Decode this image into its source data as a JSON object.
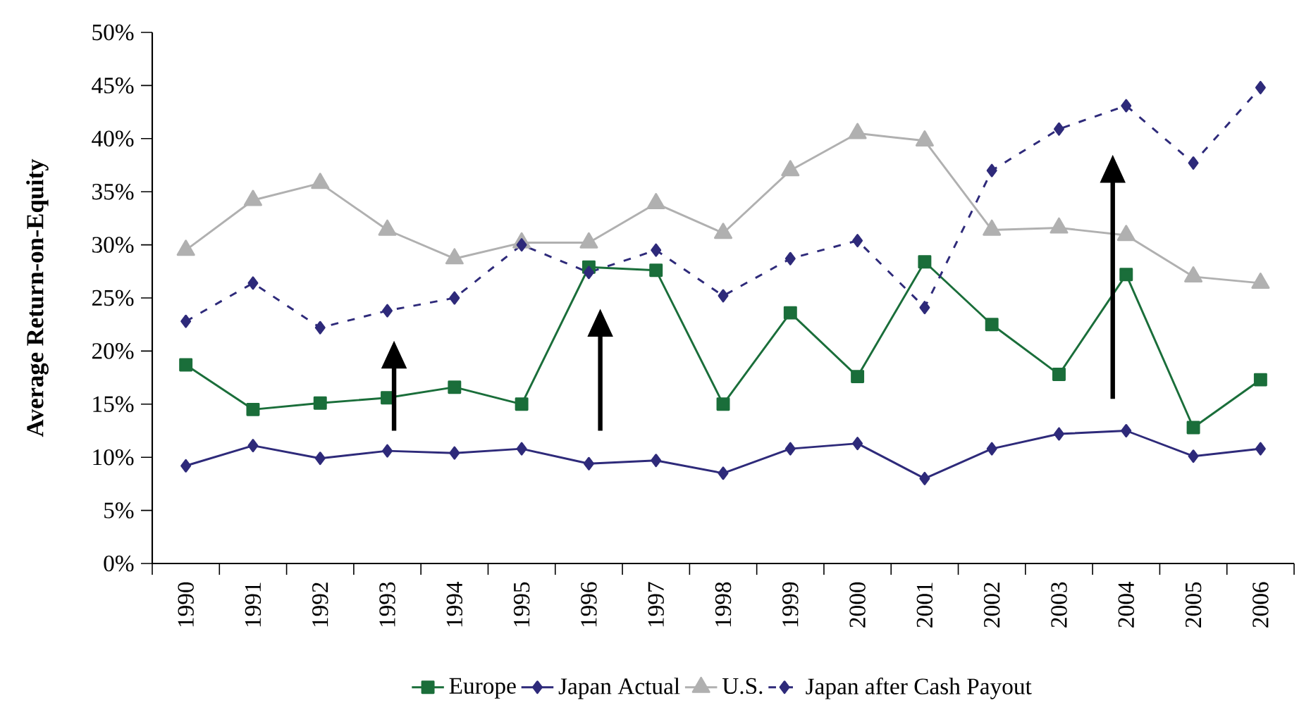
{
  "chart_data": {
    "type": "line",
    "ylabel": "Average Return-on-Equity",
    "categories": [
      "1990",
      "1991",
      "1992",
      "1993",
      "1994",
      "1995",
      "1996",
      "1997",
      "1998",
      "1999",
      "2000",
      "2001",
      "2002",
      "2003",
      "2004",
      "2005",
      "2006"
    ],
    "series": [
      {
        "name": "Europe",
        "color": "#1a6e3a",
        "marker": "square",
        "line_style": "solid",
        "values": [
          18.7,
          14.5,
          15.1,
          15.6,
          16.6,
          15.0,
          27.9,
          27.6,
          15.0,
          23.6,
          17.6,
          28.4,
          22.5,
          17.8,
          27.2,
          12.8,
          17.3
        ]
      },
      {
        "name": "Japan Actual",
        "color": "#2e2a7a",
        "marker": "diamond",
        "line_style": "solid",
        "values": [
          9.2,
          11.1,
          9.9,
          10.6,
          10.4,
          10.8,
          9.4,
          9.7,
          8.5,
          10.8,
          11.3,
          8.0,
          10.8,
          12.2,
          12.5,
          10.1,
          10.8
        ]
      },
      {
        "name": "U.S.",
        "color": "#b0b0b0",
        "marker": "triangle",
        "line_style": "solid",
        "values": [
          29.5,
          34.2,
          35.8,
          31.4,
          28.7,
          30.2,
          30.2,
          33.9,
          31.1,
          37.0,
          40.5,
          39.8,
          31.4,
          31.6,
          30.9,
          27.0,
          26.4
        ]
      },
      {
        "name": "Japan after Cash Payout",
        "color": "#2e2a7a",
        "marker": "diamond",
        "line_style": "dashed",
        "values": [
          22.8,
          26.4,
          22.2,
          23.8,
          25.0,
          30.0,
          27.4,
          29.5,
          25.2,
          28.7,
          30.4,
          24.1,
          37.0,
          40.9,
          43.1,
          37.7,
          44.8
        ]
      }
    ],
    "ylim": [
      0,
      50
    ],
    "yticks": [
      {
        "value": 0,
        "label": "0%"
      },
      {
        "value": 5,
        "label": "5%"
      },
      {
        "value": 10,
        "label": "10%"
      },
      {
        "value": 15,
        "label": "15%"
      },
      {
        "value": 20,
        "label": "20%"
      },
      {
        "value": 25,
        "label": "25%"
      },
      {
        "value": 30,
        "label": "30%"
      },
      {
        "value": 35,
        "label": "35%"
      },
      {
        "value": 40,
        "label": "40%"
      },
      {
        "value": 45,
        "label": "45%"
      },
      {
        "value": 50,
        "label": "50%"
      }
    ],
    "grid": false,
    "legend": "bottom"
  }
}
